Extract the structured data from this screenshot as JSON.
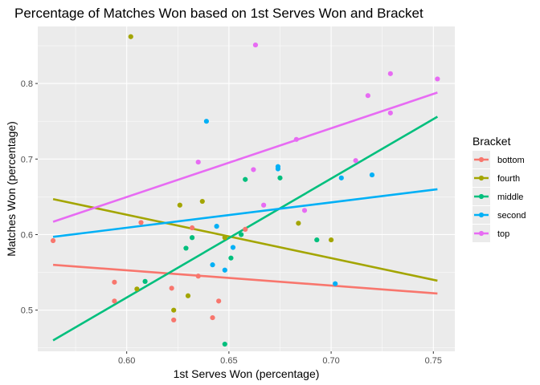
{
  "chart_data": {
    "type": "scatter",
    "title": "Percentage of Matches Won based on 1st Serves Won and Bracket",
    "xlabel": "1st Serves Won (percentage)",
    "ylabel": "Matches Won (percentage)",
    "xlim": [
      0.5565,
      0.7605
    ],
    "ylim": [
      0.4455,
      0.8755
    ],
    "x_ticks": [
      0.6,
      0.65,
      0.7,
      0.75
    ],
    "x_tick_labels": [
      "0.60",
      "0.65",
      "0.70",
      "0.75"
    ],
    "y_ticks": [
      0.5,
      0.6,
      0.7,
      0.8
    ],
    "y_tick_labels": [
      "0.5",
      "0.6",
      "0.7",
      "0.8"
    ],
    "grid": true,
    "legend": {
      "title": "Bracket",
      "position": "right"
    },
    "series": [
      {
        "name": "bottom",
        "color": "#F8766D",
        "points": [
          [
            0.564,
            0.592
          ],
          [
            0.594,
            0.537
          ],
          [
            0.594,
            0.512
          ],
          [
            0.607,
            0.616
          ],
          [
            0.622,
            0.529
          ],
          [
            0.623,
            0.487
          ],
          [
            0.632,
            0.609
          ],
          [
            0.635,
            0.545
          ],
          [
            0.642,
            0.49
          ],
          [
            0.645,
            0.512
          ],
          [
            0.658,
            0.607
          ]
        ],
        "fit": [
          [
            0.564,
            0.56
          ],
          [
            0.752,
            0.522
          ]
        ]
      },
      {
        "name": "fourth",
        "color": "#A3A500",
        "points": [
          [
            0.602,
            0.862
          ],
          [
            0.605,
            0.528
          ],
          [
            0.623,
            0.5
          ],
          [
            0.626,
            0.639
          ],
          [
            0.63,
            0.519
          ],
          [
            0.637,
            0.644
          ],
          [
            0.648,
            0.596
          ],
          [
            0.684,
            0.615
          ],
          [
            0.7,
            0.593
          ]
        ],
        "fit": [
          [
            0.564,
            0.647
          ],
          [
            0.752,
            0.539
          ]
        ]
      },
      {
        "name": "middle",
        "color": "#00BF7D",
        "points": [
          [
            0.609,
            0.538
          ],
          [
            0.629,
            0.582
          ],
          [
            0.632,
            0.596
          ],
          [
            0.648,
            0.455
          ],
          [
            0.651,
            0.569
          ],
          [
            0.656,
            0.6
          ],
          [
            0.658,
            0.673
          ],
          [
            0.675,
            0.675
          ],
          [
            0.693,
            0.593
          ]
        ],
        "fit": [
          [
            0.564,
            0.46
          ],
          [
            0.752,
            0.756
          ]
        ]
      },
      {
        "name": "second",
        "color": "#00B0F6",
        "points": [
          [
            0.639,
            0.75
          ],
          [
            0.642,
            0.56
          ],
          [
            0.644,
            0.611
          ],
          [
            0.648,
            0.553
          ],
          [
            0.652,
            0.583
          ],
          [
            0.674,
            0.69
          ],
          [
            0.674,
            0.687
          ],
          [
            0.702,
            0.535
          ],
          [
            0.705,
            0.675
          ],
          [
            0.72,
            0.679
          ]
        ],
        "fit": [
          [
            0.564,
            0.597
          ],
          [
            0.752,
            0.66
          ]
        ]
      },
      {
        "name": "top",
        "color": "#E76BF3",
        "points": [
          [
            0.635,
            0.696
          ],
          [
            0.662,
            0.686
          ],
          [
            0.663,
            0.851
          ],
          [
            0.667,
            0.639
          ],
          [
            0.683,
            0.726
          ],
          [
            0.687,
            0.632
          ],
          [
            0.712,
            0.698
          ],
          [
            0.718,
            0.784
          ],
          [
            0.729,
            0.813
          ],
          [
            0.729,
            0.761
          ],
          [
            0.752,
            0.806
          ]
        ],
        "fit": [
          [
            0.564,
            0.617
          ],
          [
            0.752,
            0.788
          ]
        ]
      }
    ]
  }
}
